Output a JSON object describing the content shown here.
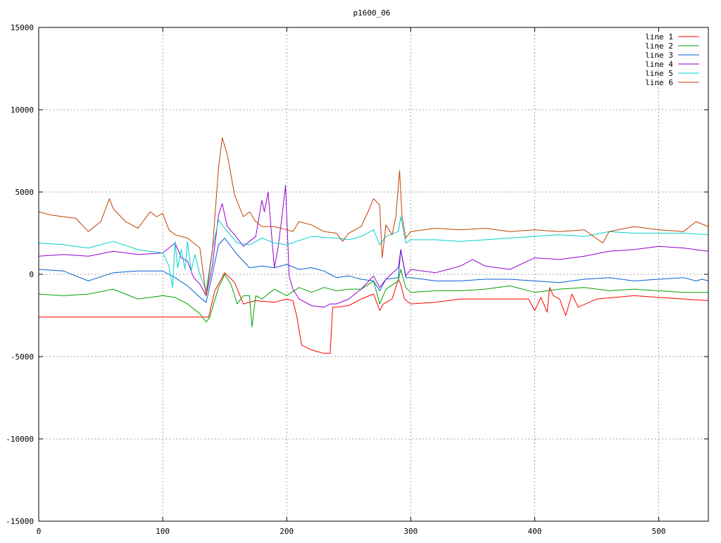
{
  "chart_data": {
    "type": "line",
    "title": "p1600_06",
    "xlabel": "",
    "ylabel": "",
    "xlim": [
      0,
      540
    ],
    "ylim": [
      -15000,
      15000
    ],
    "xticks": [
      0,
      100,
      200,
      300,
      400,
      500
    ],
    "yticks": [
      -15000,
      -10000,
      -5000,
      0,
      5000,
      10000,
      15000
    ],
    "grid": true,
    "legend_position": "top-right",
    "series": [
      {
        "name": "line 1",
        "color": "#ff0000",
        "x": [
          0,
          50,
          100,
          130,
          137,
          142,
          150,
          158,
          165,
          175,
          190,
          200,
          205,
          208,
          212,
          220,
          225,
          230,
          235,
          237,
          240,
          250,
          260,
          270,
          275,
          278,
          285,
          290,
          292,
          295,
          300,
          320,
          340,
          360,
          380,
          395,
          400,
          405,
          410,
          412,
          415,
          420,
          425,
          430,
          435,
          450,
          480,
          500,
          520,
          540
        ],
        "y": [
          -2600,
          -2600,
          -2600,
          -2600,
          -2600,
          -1000,
          100,
          -500,
          -1800,
          -1600,
          -1700,
          -1500,
          -1600,
          -2500,
          -4300,
          -4600,
          -4700,
          -4800,
          -4800,
          -2000,
          -2000,
          -1900,
          -1500,
          -1200,
          -2200,
          -1800,
          -1500,
          -300,
          -600,
          -1500,
          -1800,
          -1700,
          -1500,
          -1500,
          -1500,
          -1500,
          -2200,
          -1400,
          -2300,
          -800,
          -1300,
          -1500,
          -2500,
          -1200,
          -2000,
          -1500,
          -1300,
          -1400,
          -1500,
          -1600
        ]
      },
      {
        "name": "line 2",
        "color": "#00a000",
        "x": [
          0,
          20,
          40,
          60,
          80,
          100,
          110,
          120,
          130,
          135,
          138,
          145,
          150,
          155,
          160,
          165,
          170,
          172,
          175,
          180,
          190,
          200,
          210,
          220,
          230,
          240,
          250,
          260,
          270,
          275,
          280,
          290,
          292,
          296,
          300,
          320,
          340,
          360,
          380,
          400,
          420,
          440,
          460,
          480,
          500,
          520,
          540
        ],
        "y": [
          -1200,
          -1300,
          -1200,
          -900,
          -1500,
          -1300,
          -1400,
          -1800,
          -2400,
          -2900,
          -2600,
          -800,
          0,
          -600,
          -1800,
          -1300,
          -1300,
          -3200,
          -1300,
          -1500,
          -900,
          -1300,
          -800,
          -1100,
          -800,
          -1000,
          -900,
          -900,
          -400,
          -1800,
          -900,
          -400,
          300,
          -800,
          -1100,
          -1000,
          -1000,
          -900,
          -700,
          -1100,
          -900,
          -800,
          -1000,
          -900,
          -1000,
          -1100,
          -1100
        ]
      },
      {
        "name": "line 3",
        "color": "#0060d0",
        "x": [
          0,
          20,
          40,
          60,
          80,
          100,
          110,
          120,
          130,
          135,
          140,
          145,
          150,
          160,
          170,
          180,
          190,
          200,
          210,
          220,
          230,
          240,
          250,
          260,
          270,
          275,
          280,
          290,
          292,
          296,
          300,
          320,
          340,
          360,
          380,
          400,
          420,
          440,
          460,
          480,
          500,
          520,
          530,
          535,
          540
        ],
        "y": [
          300,
          200,
          -400,
          100,
          200,
          200,
          -200,
          -700,
          -1400,
          -1700,
          0,
          1800,
          2200,
          1200,
          400,
          500,
          400,
          600,
          300,
          400,
          200,
          -200,
          -100,
          -300,
          -400,
          -1000,
          -300,
          -200,
          1500,
          -200,
          -200,
          -400,
          -400,
          -300,
          -300,
          -400,
          -500,
          -300,
          -200,
          -400,
          -300,
          -200,
          -400,
          -300,
          -400
        ]
      },
      {
        "name": "line 4",
        "color": "#9400d3",
        "x": [
          0,
          20,
          40,
          60,
          80,
          100,
          110,
          115,
          120,
          125,
          130,
          135,
          140,
          145,
          148,
          152,
          158,
          165,
          175,
          180,
          182,
          185,
          188,
          190,
          193,
          196,
          199,
          202,
          205,
          210,
          220,
          230,
          235,
          240,
          250,
          260,
          270,
          275,
          280,
          290,
          292,
          296,
          300,
          320,
          340,
          350,
          360,
          380,
          400,
          420,
          440,
          460,
          480,
          500,
          520,
          540
        ],
        "y": [
          1100,
          1200,
          1100,
          1400,
          1200,
          1300,
          1900,
          1000,
          800,
          -200,
          -600,
          -1300,
          500,
          3600,
          4300,
          2900,
          2400,
          1700,
          2300,
          4500,
          3800,
          5000,
          2200,
          400,
          1600,
          3400,
          5400,
          -100,
          -900,
          -1500,
          -1900,
          -2000,
          -1800,
          -1800,
          -1500,
          -900,
          -100,
          -800,
          -300,
          400,
          1500,
          -100,
          300,
          100,
          500,
          900,
          500,
          300,
          1000,
          900,
          1100,
          1400,
          1500,
          1700,
          1600,
          1400
        ]
      },
      {
        "name": "line 5",
        "color": "#00d0d0",
        "x": [
          0,
          20,
          40,
          60,
          80,
          100,
          102,
          105,
          108,
          110,
          112,
          115,
          118,
          120,
          123,
          126,
          130,
          135,
          140,
          145,
          150,
          160,
          170,
          180,
          190,
          200,
          220,
          240,
          250,
          260,
          270,
          275,
          280,
          290,
          292,
          296,
          300,
          320,
          340,
          360,
          380,
          400,
          420,
          440,
          460,
          480,
          500,
          520,
          540
        ],
        "y": [
          1900,
          1800,
          1600,
          2000,
          1500,
          1300,
          1000,
          500,
          -800,
          2000,
          400,
          1500,
          300,
          2000,
          200,
          1200,
          0,
          -1000,
          1500,
          3300,
          2800,
          1900,
          1800,
          2200,
          1900,
          1800,
          2300,
          2200,
          2100,
          2300,
          2700,
          1800,
          2300,
          2600,
          3500,
          1900,
          2100,
          2100,
          2000,
          2100,
          2200,
          2300,
          2400,
          2300,
          2600,
          2500,
          2500,
          2500,
          2400
        ]
      },
      {
        "name": "line 6",
        "color": "#c04000",
        "x": [
          0,
          10,
          20,
          30,
          40,
          50,
          57,
          60,
          70,
          80,
          90,
          95,
          100,
          105,
          110,
          120,
          130,
          135,
          140,
          145,
          148,
          152,
          158,
          165,
          170,
          175,
          180,
          190,
          200,
          205,
          210,
          220,
          230,
          240,
          245,
          250,
          260,
          265,
          270,
          275,
          277,
          280,
          285,
          288,
          291,
          293,
          296,
          300,
          320,
          340,
          360,
          380,
          400,
          420,
          440,
          455,
          460,
          480,
          500,
          520,
          530,
          540
        ],
        "y": [
          3800,
          3600,
          3500,
          3400,
          2600,
          3200,
          4600,
          4000,
          3200,
          2800,
          3800,
          3500,
          3700,
          2700,
          2400,
          2200,
          1600,
          -1300,
          1400,
          6500,
          8300,
          7300,
          4800,
          3500,
          3800,
          3200,
          2900,
          2900,
          2700,
          2600,
          3200,
          3000,
          2600,
          2500,
          2000,
          2500,
          2900,
          3700,
          4600,
          4200,
          1000,
          3000,
          2400,
          3500,
          6300,
          3500,
          2200,
          2600,
          2800,
          2700,
          2800,
          2600,
          2700,
          2600,
          2700,
          1900,
          2600,
          2900,
          2700,
          2600,
          3200,
          2900
        ]
      }
    ]
  }
}
